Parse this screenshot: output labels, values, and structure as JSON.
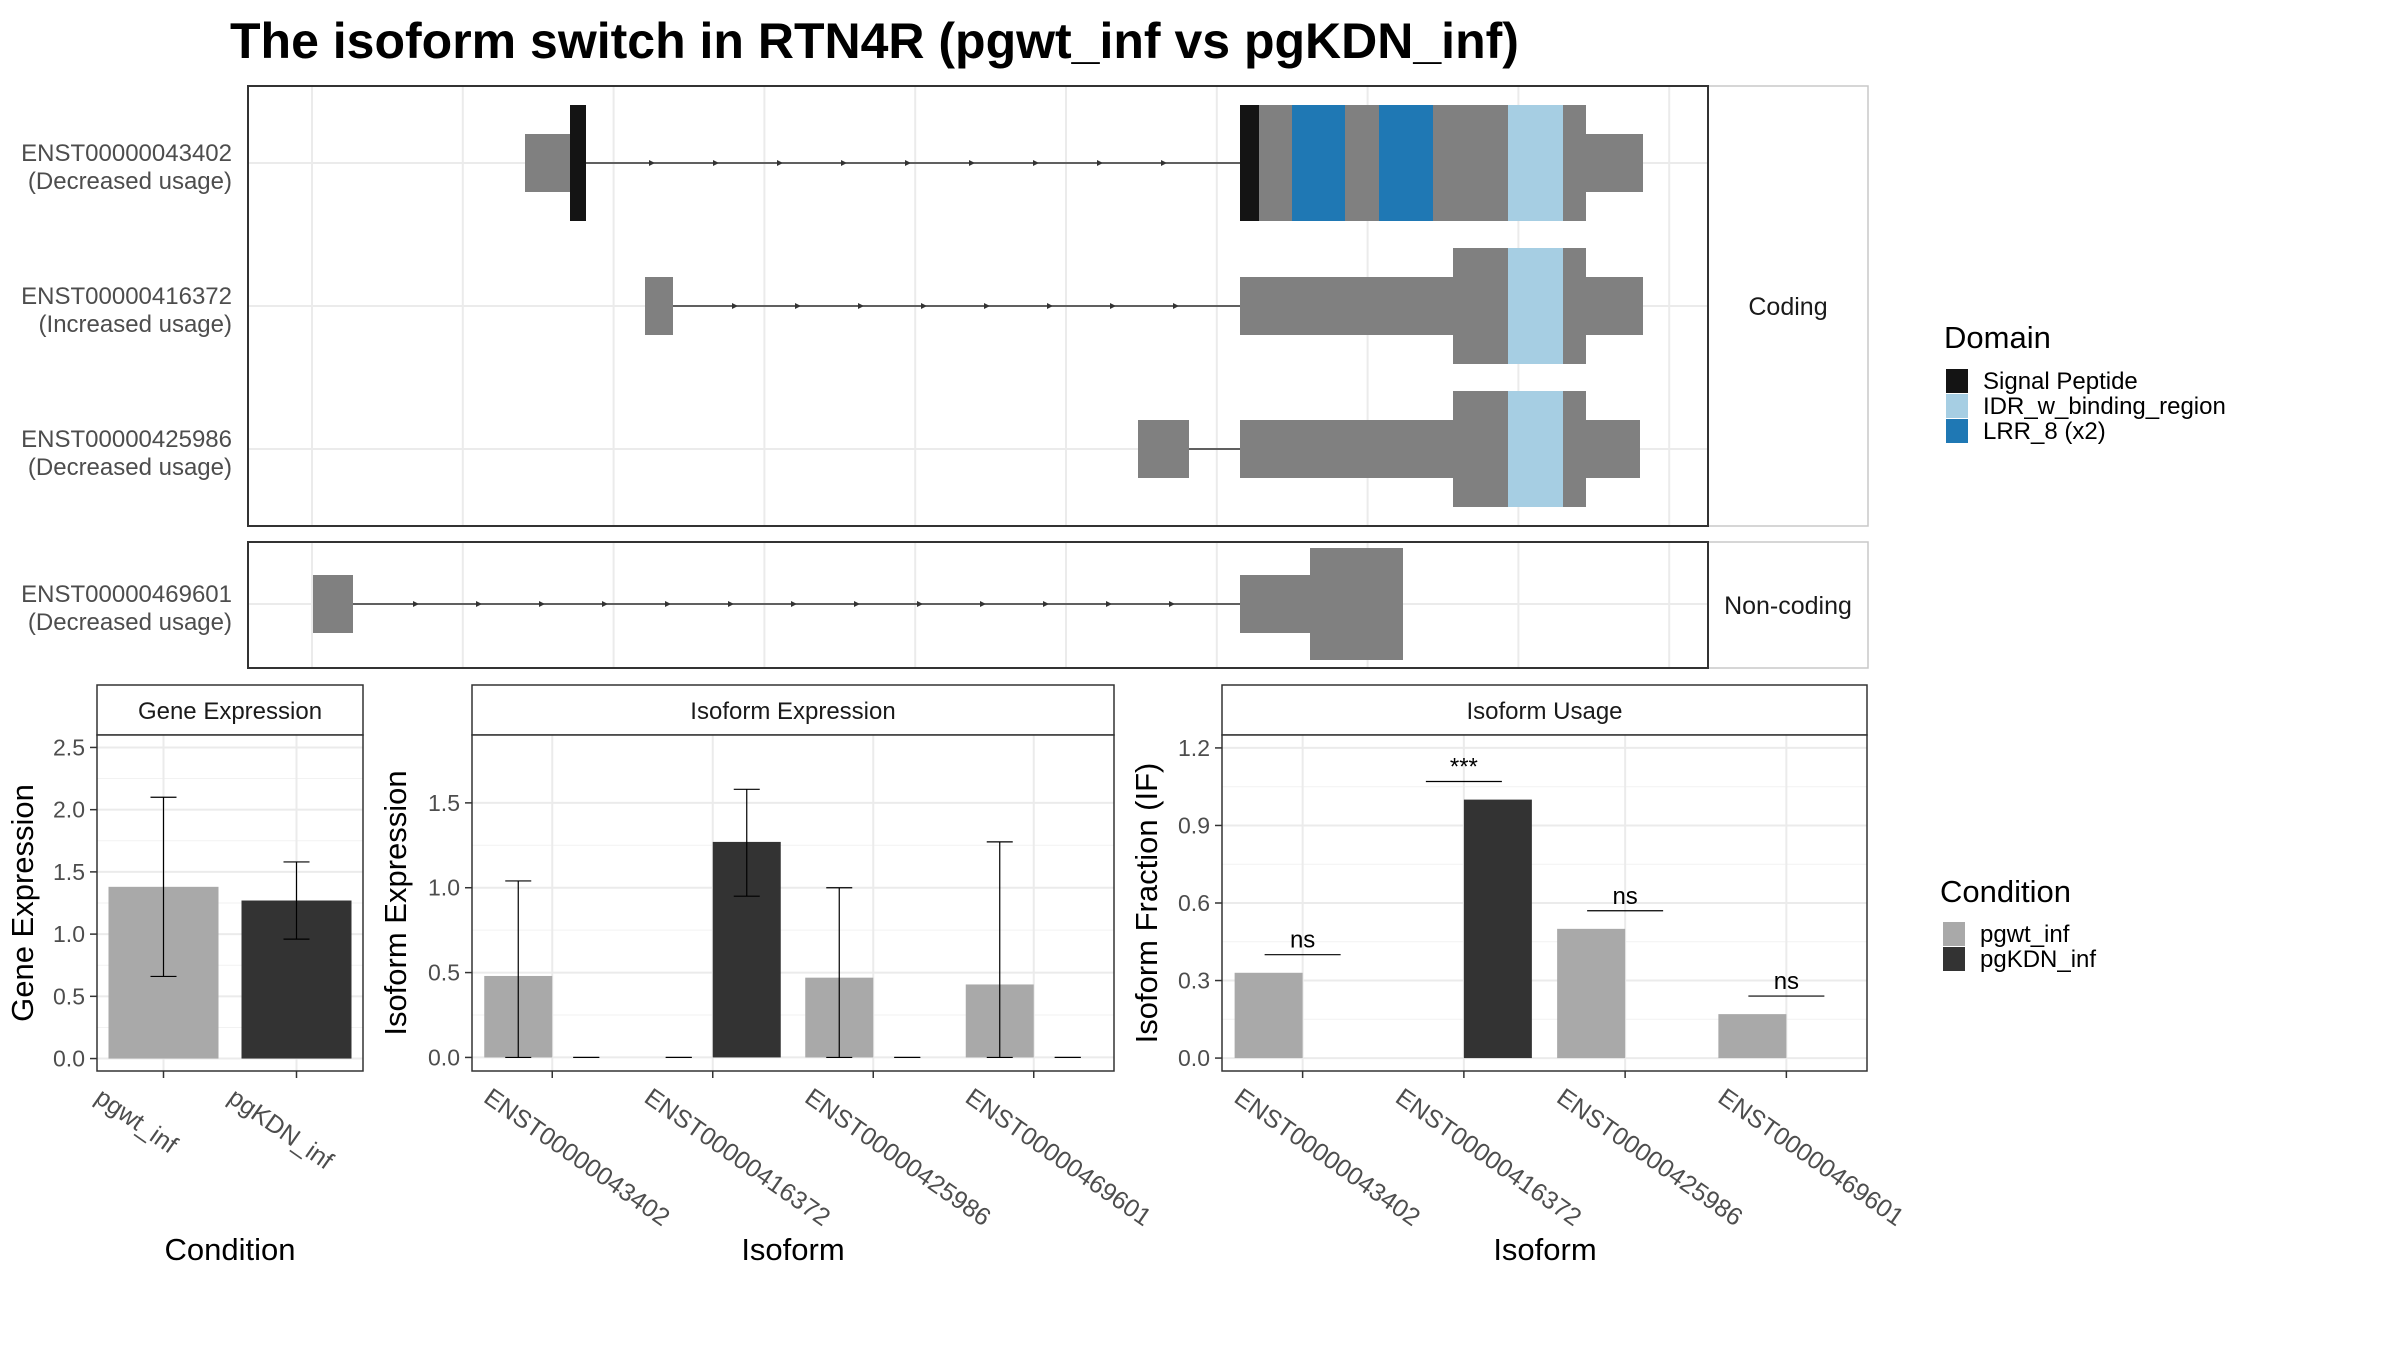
{
  "title": "The isoform switch in RTN4R (pgwt_inf vs pgKDN_inf)",
  "colors": {
    "exon": "#808080",
    "signal_peptide": "#141414",
    "idr": "#a6cee3",
    "lrr": "#1f78b4",
    "pgwt_inf": "#a9a9a9",
    "pgKDN_inf": "#333333"
  },
  "structure": {
    "facets": [
      "Coding",
      "Non-coding"
    ],
    "isoforms": [
      {
        "id": "ENST00000043402",
        "usage": "(Decreased usage)",
        "facet": "Coding"
      },
      {
        "id": "ENST00000416372",
        "usage": "(Increased usage)",
        "facet": "Coding"
      },
      {
        "id": "ENST00000425986",
        "usage": "(Decreased usage)",
        "facet": "Coding"
      },
      {
        "id": "ENST00000469601",
        "usage": "(Decreased usage)",
        "facet": "Non-coding"
      }
    ]
  },
  "domain_legend": {
    "title": "Domain",
    "items": [
      {
        "label": "Signal Peptide",
        "color": "#141414"
      },
      {
        "label": "IDR_w_binding_region",
        "color": "#a6cee3"
      },
      {
        "label": "LRR_8 (x2)",
        "color": "#1f78b4"
      }
    ]
  },
  "condition_legend": {
    "title": "Condition",
    "items": [
      {
        "label": "pgwt_inf",
        "color": "#a9a9a9"
      },
      {
        "label": "pgKDN_inf",
        "color": "#333333"
      }
    ]
  },
  "chart_data": [
    {
      "type": "bar",
      "title": "Gene Expression",
      "xlabel": "Condition",
      "ylabel": "Gene Expression",
      "categories": [
        "pgwt_inf",
        "pgKDN_inf"
      ],
      "values": [
        1.38,
        1.27
      ],
      "error_low": [
        0.66,
        0.96
      ],
      "error_high": [
        2.1,
        1.58
      ],
      "ylim": [
        -0.1,
        2.6
      ],
      "yticks": [
        "0.0",
        "0.5",
        "1.0",
        "1.5",
        "2.0",
        "2.5"
      ]
    },
    {
      "type": "bar",
      "title": "Isoform Expression",
      "xlabel": "Isoform",
      "ylabel": "Isoform Expression",
      "categories": [
        "ENST00000043402",
        "ENST00000416372",
        "ENST00000425986",
        "ENST00000469601"
      ],
      "series": [
        {
          "name": "pgwt_inf",
          "values": [
            0.48,
            0.0,
            0.47,
            0.43
          ],
          "error_low": [
            0.0,
            0.0,
            0.0,
            0.0
          ],
          "error_high": [
            1.04,
            0.0,
            1.0,
            1.27
          ]
        },
        {
          "name": "pgKDN_inf",
          "values": [
            0.0,
            1.27,
            0.0,
            0.0
          ],
          "error_low": [
            0.0,
            0.95,
            0.0,
            0.0
          ],
          "error_high": [
            0.0,
            1.58,
            0.0,
            0.0
          ]
        }
      ],
      "ylim": [
        -0.08,
        1.9
      ],
      "yticks": [
        "0.0",
        "0.5",
        "1.0",
        "1.5"
      ]
    },
    {
      "type": "bar",
      "title": "Isoform Usage",
      "xlabel": "Isoform",
      "ylabel": "Isoform Fraction (IF)",
      "categories": [
        "ENST00000043402",
        "ENST00000416372",
        "ENST00000425986",
        "ENST00000469601"
      ],
      "series": [
        {
          "name": "pgwt_inf",
          "values": [
            0.33,
            0.0,
            0.5,
            0.17
          ]
        },
        {
          "name": "pgKDN_inf",
          "values": [
            0.0,
            1.0,
            0.0,
            0.0
          ]
        }
      ],
      "significance": [
        "ns",
        "***",
        "ns",
        "ns"
      ],
      "ylim": [
        -0.05,
        1.25
      ],
      "yticks": [
        "0.0",
        "0.3",
        "0.6",
        "0.9",
        "1.2"
      ]
    }
  ]
}
